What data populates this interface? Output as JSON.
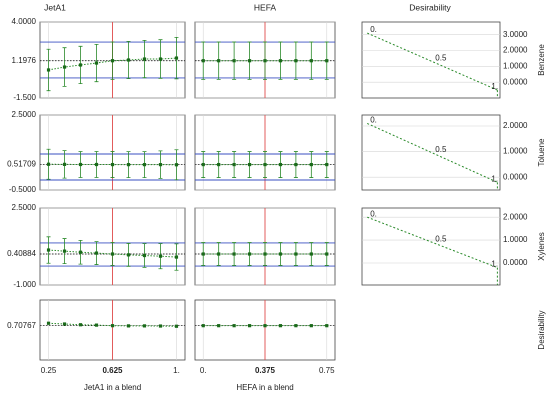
{
  "columns": [
    "JetA1",
    "HEFA",
    "Desirability"
  ],
  "x_axes": [
    {
      "title": "JetA1 in a blend",
      "xlim": [
        0.2,
        1.05
      ],
      "current": 0.625,
      "xticks": [
        0.25,
        0.625,
        {
          "value": 1,
          "label": "1."
        }
      ],
      "x": [
        0.25,
        0.34375,
        0.4375,
        0.53125,
        0.625,
        0.71875,
        0.8125,
        0.90625,
        1
      ]
    },
    {
      "title": "HEFA in a blend",
      "xlim": [
        -0.05,
        0.8
      ],
      "current": 0.375,
      "xticks": [
        {
          "value": 0,
          "label": "0."
        },
        0.375,
        0.75
      ],
      "x": [
        0,
        0.09375,
        0.1875,
        0.28125,
        0.375,
        0.46875,
        0.5625,
        0.65625,
        0.75
      ]
    }
  ],
  "rows": [
    {
      "name": "Benzene",
      "ylim": [
        -1.5,
        4.0
      ],
      "yticks": [
        {
          "value": 4,
          "label": "4.0000"
        },
        1.1976,
        {
          "value": -1.5,
          "label": "-1.500"
        }
      ],
      "band": [
        -0.05,
        2.55
      ],
      "profiles": [
        {
          "values": [
            0.53,
            0.74,
            0.89,
            1.03,
            1.1976,
            1.25,
            1.32,
            1.32,
            1.39
          ],
          "errors": [
            1.5,
            1.4,
            1.35,
            1.35,
            1.35,
            1.35,
            1.35,
            1.4,
            1.5
          ]
        },
        {
          "values": [
            1.1976,
            1.1976,
            1.1976,
            1.1976,
            1.1976,
            1.1976,
            1.1976,
            1.1976,
            1.1976
          ],
          "errors": [
            1.35,
            1.35,
            1.35,
            1.35,
            1.35,
            1.35,
            1.35,
            1.35,
            1.35
          ]
        }
      ],
      "desirability": {
        "ylim": [
          -1.0,
          3.8
        ],
        "yticks": [
          {
            "value": 3,
            "label": "3.0000"
          },
          {
            "value": 2,
            "label": "2.0000"
          },
          {
            "value": 1,
            "label": "1.0000"
          },
          {
            "value": 0,
            "label": "0.0000"
          }
        ],
        "points": [
          {
            "value": 0,
            "label": "0."
          },
          0.5,
          {
            "value": 1,
            "label": "1."
          }
        ],
        "values": [
          3.1,
          1.3,
          -0.5
        ]
      }
    },
    {
      "name": "Toluene",
      "ylim": [
        -0.5,
        2.5
      ],
      "yticks": [
        {
          "value": 2.5,
          "label": "2.5000"
        },
        0.51709,
        {
          "value": -0.5,
          "label": "-0.5000"
        }
      ],
      "band": [
        -0.1,
        0.94
      ],
      "profiles": [
        {
          "values": [
            0.53,
            0.525,
            0.52,
            0.52,
            0.51709,
            0.515,
            0.515,
            0.515,
            0.51
          ],
          "errors": [
            0.6,
            0.55,
            0.52,
            0.52,
            0.52,
            0.52,
            0.52,
            0.55,
            0.6
          ]
        },
        {
          "values": [
            0.51709,
            0.51709,
            0.51709,
            0.51709,
            0.51709,
            0.51709,
            0.51709,
            0.51709,
            0.51709
          ],
          "errors": [
            0.52,
            0.52,
            0.52,
            0.52,
            0.52,
            0.52,
            0.52,
            0.52,
            0.52
          ]
        }
      ],
      "desirability": {
        "ylim": [
          -0.5,
          2.43
        ],
        "yticks": [
          {
            "value": 2,
            "label": "2.0000"
          },
          {
            "value": 1,
            "label": "1.0000"
          },
          {
            "value": 0,
            "label": "0.0000"
          }
        ],
        "points": [
          {
            "value": 0,
            "label": "0."
          },
          0.5,
          {
            "value": 1,
            "label": "1."
          }
        ],
        "values": [
          2.1,
          0.95,
          -0.2
        ]
      }
    },
    {
      "name": "Xylenes",
      "ylim": [
        -1.0,
        2.5
      ],
      "yticks": [
        {
          "value": 2.5,
          "label": "2.5000"
        },
        0.40884,
        {
          "value": -1,
          "label": "-1.000"
        }
      ],
      "band": [
        -0.14,
        0.91
      ],
      "profiles": [
        {
          "values": [
            0.59,
            0.54,
            0.49,
            0.45,
            0.40884,
            0.37,
            0.34,
            0.31,
            0.27
          ],
          "errors": [
            0.6,
            0.57,
            0.54,
            0.52,
            0.52,
            0.52,
            0.54,
            0.57,
            0.6
          ]
        },
        {
          "values": [
            0.40884,
            0.40884,
            0.40884,
            0.40884,
            0.40884,
            0.40884,
            0.40884,
            0.40884,
            0.40884
          ],
          "errors": [
            0.52,
            0.52,
            0.52,
            0.52,
            0.52,
            0.52,
            0.52,
            0.52,
            0.52
          ]
        }
      ],
      "desirability": {
        "ylim": [
          -0.96,
          2.4
        ],
        "yticks": [
          {
            "value": 2,
            "label": "2.0000"
          },
          {
            "value": 1,
            "label": "1.0000"
          },
          {
            "value": 0,
            "label": "0.0000"
          }
        ],
        "points": [
          {
            "value": 0,
            "label": "0."
          },
          0.5,
          {
            "value": 1,
            "label": "1."
          }
        ],
        "values": [
          2.0,
          0.9,
          -0.2
        ]
      }
    },
    {
      "name": "Desirability",
      "ylim": [
        0.25,
        1.05
      ],
      "yticks": [
        0.70767
      ],
      "profiles": [
        {
          "values": [
            0.74,
            0.73,
            0.72,
            0.715,
            0.70767,
            0.705,
            0.705,
            0.703,
            0.7
          ]
        },
        {
          "values": [
            0.70767,
            0.70767,
            0.70767,
            0.70767,
            0.70767,
            0.70767,
            0.70767,
            0.70767,
            0.70767
          ]
        }
      ]
    }
  ]
}
